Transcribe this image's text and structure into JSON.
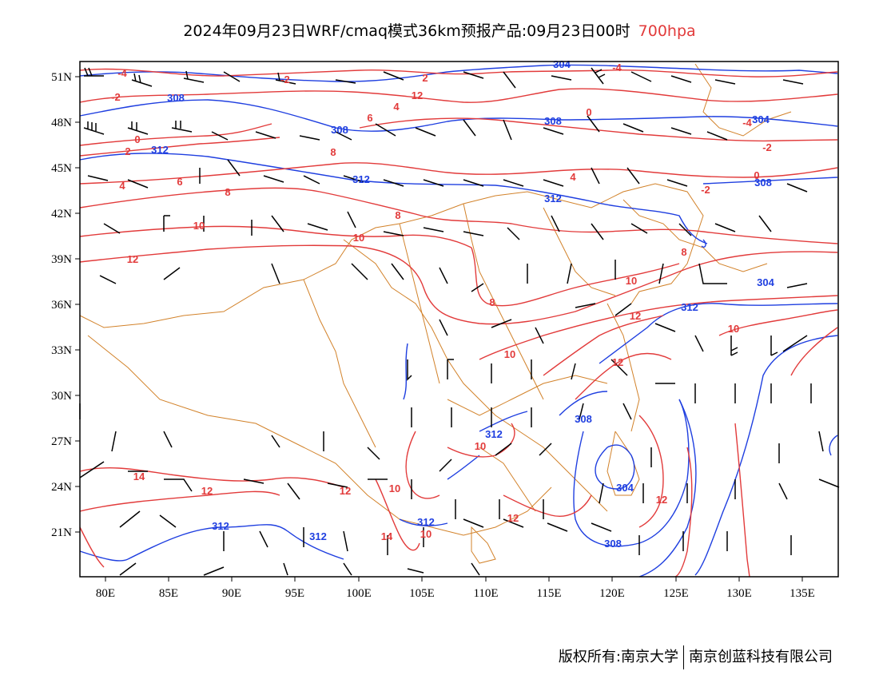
{
  "header": {
    "title": "2024年09月23日WRF/cmaq模式36km预报产品:09月23日00时",
    "level": "700hpa"
  },
  "axes": {
    "lat_labels": [
      "51N",
      "48N",
      "45N",
      "42N",
      "39N",
      "36N",
      "33N",
      "30N",
      "27N",
      "24N",
      "21N"
    ],
    "lon_labels": [
      "80E",
      "85E",
      "90E",
      "95E",
      "100E",
      "105E",
      "110E",
      "115E",
      "120E",
      "125E",
      "130E",
      "135E"
    ]
  },
  "contour_labels": {
    "height": [
      "304",
      "308",
      "308",
      "312",
      "308",
      "304",
      "304",
      "308",
      "312",
      "312",
      "312",
      "312",
      "308",
      "304",
      "308",
      "312",
      "312"
    ],
    "temperature": [
      "-4",
      "-2",
      "2",
      "0",
      "-2",
      "-4",
      "6",
      "0",
      "-4",
      "-2",
      "8",
      "4",
      "2",
      "4",
      "10",
      "12",
      "6",
      "8",
      "10",
      "12",
      "4",
      "-2",
      "0",
      "8",
      "10",
      "10",
      "12",
      "8",
      "8",
      "10",
      "12",
      "14",
      "12",
      "12",
      "10",
      "12",
      "10",
      "10",
      "12",
      "14"
    ]
  },
  "colors": {
    "height_contour": "#1f3fe0",
    "temperature_contour": "#e23b3b",
    "boundary": "#d2822a",
    "wind_barb": "#000000",
    "level_text": "#e23b3b"
  },
  "footer": {
    "copyright": "版权所有:南京大学",
    "company": "南京创蓝科技有限公司"
  }
}
